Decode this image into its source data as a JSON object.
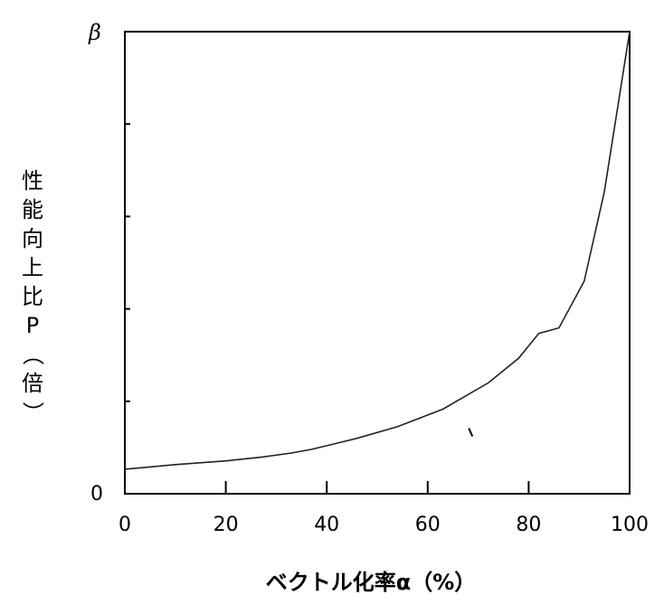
{
  "chart_data": {
    "type": "line",
    "title": "",
    "xlabel": "ベクトル化率α（%）",
    "ylabel": "性能向上比P（倍）",
    "y_top_label": "β",
    "y_bottom_label": "0",
    "xlim": [
      0,
      100
    ],
    "ylim": [
      0,
      1
    ],
    "x_ticks": [
      0,
      20,
      40,
      60,
      80,
      100
    ],
    "y_tick_count": 4,
    "grid": false,
    "series": [
      {
        "x": [
          0,
          10,
          20,
          27,
          33,
          37,
          40,
          46,
          54,
          63,
          72,
          78,
          82,
          86,
          91,
          95,
          100
        ],
        "y": [
          0.053,
          0.063,
          0.071,
          0.079,
          0.088,
          0.096,
          0.104,
          0.12,
          0.145,
          0.183,
          0.24,
          0.293,
          0.347,
          0.359,
          0.46,
          0.654,
          1.0
        ]
      }
    ],
    "annotations": [
      {
        "text": "",
        "x": 68.5,
        "y": 0.13,
        "kind": "small-mark"
      }
    ]
  }
}
